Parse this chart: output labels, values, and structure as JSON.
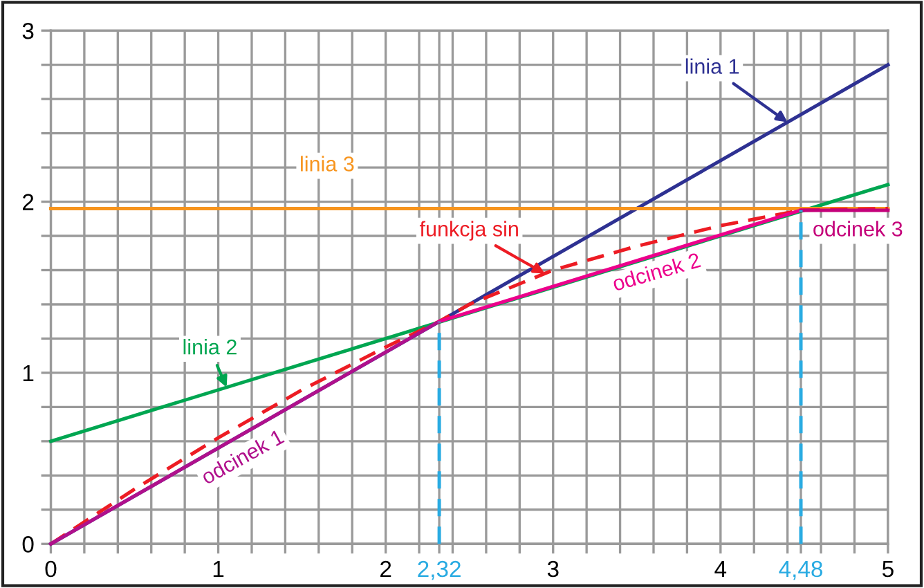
{
  "chart_data": {
    "type": "line",
    "series": [
      {
        "name": "linia 1",
        "color": "#2e3192",
        "x": [
          0,
          5
        ],
        "values": [
          0,
          2.8
        ]
      },
      {
        "name": "linia 2",
        "color": "#00a651",
        "x": [
          0,
          5
        ],
        "values": [
          0.6,
          2.1
        ]
      },
      {
        "name": "linia 3",
        "color": "#f7941d",
        "x": [
          0,
          5
        ],
        "values": [
          1.96,
          1.96
        ]
      },
      {
        "name": "funkcja sin",
        "color": "#ed1c24",
        "line_style": "dashed",
        "x": [
          0,
          0.5,
          1,
          1.5,
          2,
          2.32,
          2.5,
          3,
          3.5,
          4,
          4.48,
          5
        ],
        "values": [
          0,
          0.32,
          0.62,
          0.9,
          1.15,
          1.3,
          1.4,
          1.6,
          1.74,
          1.86,
          1.95,
          1.96
        ]
      },
      {
        "name": "odcinek 1",
        "color": "#b0108c",
        "x": [
          0,
          2.32
        ],
        "values": [
          0,
          1.3
        ]
      },
      {
        "name": "odcinek 2",
        "color": "#ec008c",
        "x": [
          2.32,
          4.48
        ],
        "values": [
          1.3,
          1.95
        ]
      },
      {
        "name": "odcinek 3",
        "color": "#c4007a",
        "x": [
          4.48,
          5
        ],
        "values": [
          1.95,
          1.95
        ]
      },
      {
        "color": "#29abe2",
        "line_style": "dashed",
        "x": [
          2.32,
          2.32
        ],
        "values": [
          0,
          1.3
        ]
      },
      {
        "color": "#29abe2",
        "line_style": "dashed",
        "x": [
          4.48,
          4.48
        ],
        "values": [
          0,
          1.95
        ]
      }
    ],
    "xlim": [
      0,
      5
    ],
    "ylim": [
      0,
      3
    ],
    "xticks": [
      0,
      {
        "value": 0.2,
        "label": null
      },
      {
        "value": 0.4,
        "label": null
      },
      {
        "value": 0.6,
        "label": null
      },
      {
        "value": 0.8,
        "label": null
      },
      1,
      {
        "value": 1.2,
        "label": null
      },
      {
        "value": 1.4,
        "label": null
      },
      {
        "value": 1.6,
        "label": null
      },
      {
        "value": 1.8,
        "label": null
      },
      2,
      {
        "value": 2.2,
        "label": null
      },
      {
        "value": 2.32,
        "label": "2,32"
      },
      {
        "value": 2.4,
        "label": null
      },
      {
        "value": 2.6,
        "label": null
      },
      {
        "value": 2.8,
        "label": null
      },
      3,
      {
        "value": 3.2,
        "label": null
      },
      {
        "value": 3.4,
        "label": null
      },
      {
        "value": 3.6,
        "label": null
      },
      {
        "value": 3.8,
        "label": null
      },
      4,
      {
        "value": 4.2,
        "label": null
      },
      {
        "value": 4.4,
        "label": null
      },
      {
        "value": 4.48,
        "label": "4,48"
      },
      {
        "value": 4.6,
        "label": null
      },
      {
        "value": 4.8,
        "label": null
      },
      5
    ],
    "yticks": [
      0,
      {
        "value": 0.2,
        "label": null
      },
      {
        "value": 0.4,
        "label": null
      },
      {
        "value": 0.6,
        "label": null
      },
      {
        "value": 0.8,
        "label": null
      },
      1,
      {
        "value": 1.2,
        "label": null
      },
      {
        "value": 1.4,
        "label": null
      },
      {
        "value": 1.6,
        "label": null
      },
      {
        "value": 1.8,
        "label": null
      },
      2,
      {
        "value": 2.2,
        "label": null
      },
      {
        "value": 2.4,
        "label": null
      },
      {
        "value": 2.6,
        "label": null
      },
      {
        "value": 2.8,
        "label": null
      },
      3
    ],
    "grid": true
  }
}
